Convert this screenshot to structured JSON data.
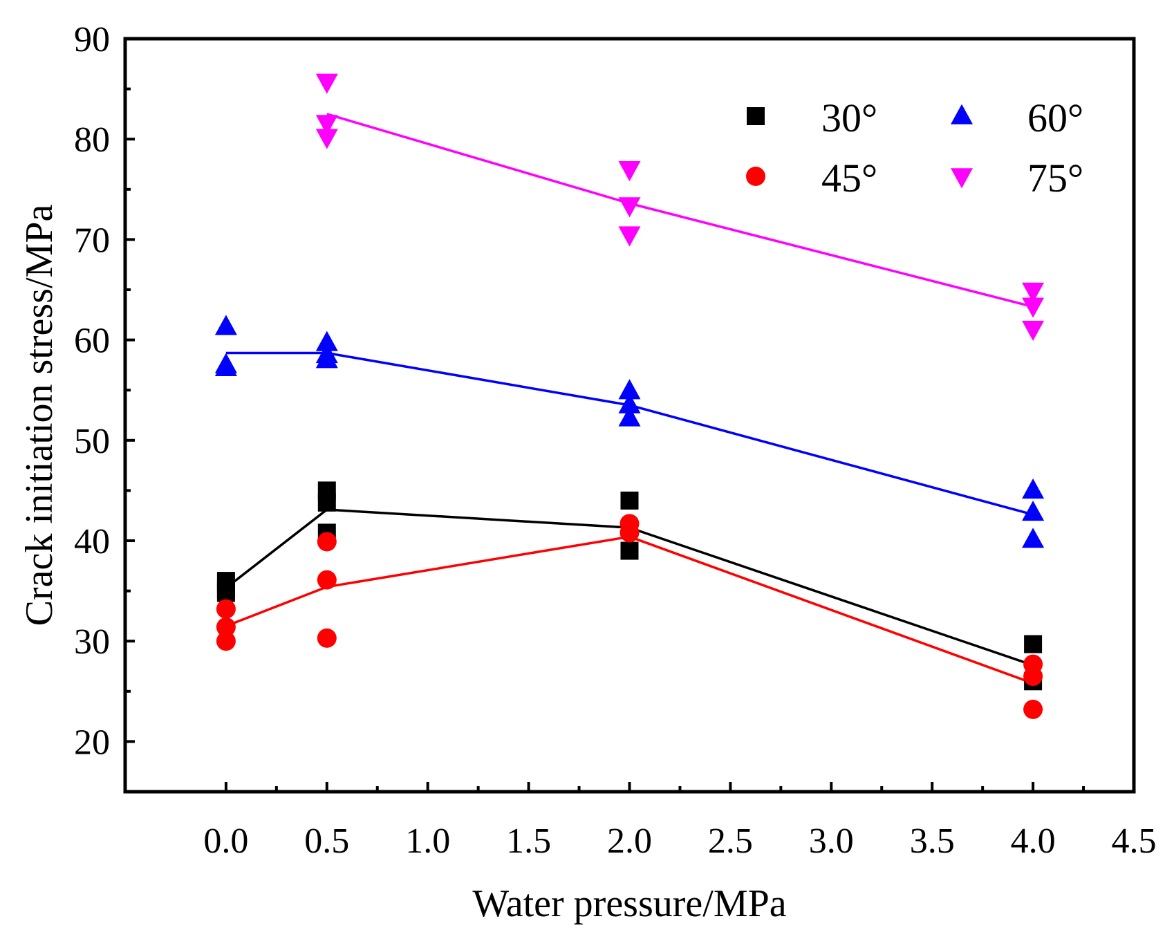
{
  "chart_data": {
    "type": "scatter",
    "title": "",
    "xlabel": "Water pressure/MPa",
    "ylabel": "Crack initiation stress/MPa",
    "xlim": [
      -0.5,
      4.5
    ],
    "ylim": [
      15,
      90
    ],
    "xticks": [
      0.0,
      0.5,
      1.0,
      1.5,
      2.0,
      2.5,
      3.0,
      3.5,
      4.0,
      4.5
    ],
    "xtick_labels": [
      "0.0",
      "0.5",
      "1.0",
      "1.5",
      "2.0",
      "2.5",
      "3.0",
      "3.5",
      "4.0",
      "4.5"
    ],
    "yticks": [
      20,
      30,
      40,
      50,
      60,
      70,
      80,
      90
    ],
    "ytick_labels": [
      "20",
      "30",
      "40",
      "50",
      "60",
      "70",
      "80",
      "90"
    ],
    "legend_position": "top-right",
    "series": [
      {
        "name": "30°",
        "color": "#000000",
        "marker": "square",
        "points": [
          [
            0,
            36.0
          ],
          [
            0,
            35.2
          ],
          [
            0,
            34.8
          ],
          [
            0.5,
            45.0
          ],
          [
            0.5,
            43.8
          ],
          [
            0.5,
            40.8
          ],
          [
            2.0,
            44.0
          ],
          [
            2.0,
            39.0
          ],
          [
            4.0,
            29.7
          ],
          [
            4.0,
            26.0
          ]
        ],
        "fit_line": [
          [
            0,
            35.3
          ],
          [
            0.5,
            43.1
          ],
          [
            2.0,
            41.3
          ],
          [
            4.0,
            27.6
          ]
        ]
      },
      {
        "name": "45°",
        "color": "#ff0000",
        "marker": "circle",
        "points": [
          [
            0,
            33.2
          ],
          [
            0,
            31.4
          ],
          [
            0,
            30.0
          ],
          [
            0.5,
            39.9
          ],
          [
            0.5,
            36.1
          ],
          [
            0.5,
            30.3
          ],
          [
            2.0,
            41.7
          ],
          [
            2.0,
            40.8
          ],
          [
            4.0,
            27.7
          ],
          [
            4.0,
            26.5
          ],
          [
            4.0,
            23.2
          ]
        ],
        "fit_line": [
          [
            0,
            31.5
          ],
          [
            0.5,
            35.4
          ],
          [
            2.0,
            40.4
          ],
          [
            4.0,
            25.8
          ]
        ]
      },
      {
        "name": "60°",
        "color": "#0000ff",
        "marker": "triangle-up",
        "points": [
          [
            0,
            61.3
          ],
          [
            0,
            57.5
          ],
          [
            0,
            57.2
          ],
          [
            0.5,
            59.7
          ],
          [
            0.5,
            58.5
          ],
          [
            0.5,
            58.0
          ],
          [
            2.0,
            54.9
          ],
          [
            2.0,
            53.5
          ],
          [
            2.0,
            52.2
          ],
          [
            4.0,
            45.0
          ],
          [
            4.0,
            42.8
          ],
          [
            4.0,
            40.1
          ]
        ],
        "fit_line": [
          [
            0,
            58.7
          ],
          [
            0.5,
            58.7
          ],
          [
            2.0,
            53.5
          ],
          [
            4.0,
            42.6
          ]
        ]
      },
      {
        "name": "75°",
        "color": "#ff00ff",
        "marker": "triangle-down",
        "points": [
          [
            0.5,
            85.7
          ],
          [
            0.5,
            81.6
          ],
          [
            0.5,
            80.2
          ],
          [
            2.0,
            77.0
          ],
          [
            2.0,
            73.4
          ],
          [
            2.0,
            70.5
          ],
          [
            4.0,
            64.9
          ],
          [
            4.0,
            63.4
          ],
          [
            4.0,
            61.1
          ]
        ],
        "fit_line": [
          [
            0.5,
            82.5
          ],
          [
            2.0,
            73.6
          ],
          [
            4.0,
            63.3
          ]
        ]
      }
    ]
  }
}
